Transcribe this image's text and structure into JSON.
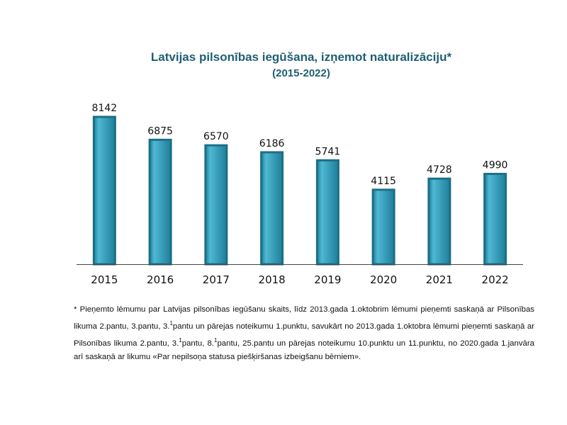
{
  "chart_data": {
    "type": "bar",
    "title": "Latvijas pilsonības iegūšana, izņemot naturalizāciju*",
    "subtitle": "(2015-2022)",
    "categories": [
      "2015",
      "2016",
      "2017",
      "2018",
      "2019",
      "2020",
      "2021",
      "2022"
    ],
    "values": [
      8142,
      6875,
      6570,
      6186,
      5741,
      4115,
      4728,
      4990
    ],
    "xlabel": "",
    "ylabel": "",
    "ylim": [
      0,
      8142
    ],
    "grid": false,
    "legend": "none",
    "bar_color": "#3a9fbb",
    "bar_edge_color": "#1d6f86",
    "axis_color": "#444444"
  },
  "footnote": {
    "p1": "* Pieņemto lēmumu par Latvijas pilsonības iegūšanu skaits, līdz 2013.gada 1.oktobrim lēmumi pieņemti saskaņā ar Pilsonības likuma 2.pantu, 3.pantu, 3.",
    "sup1": "1",
    "p2": "pantu un pārejas noteikumu 1.punktu, savukārt no 2013.gada 1.oktobra lēmumi pieņemti saskaņā ar Pilsonības likuma 2.pantu, 3.",
    "sup2": "1",
    "p3": "pantu, 8.",
    "sup3": "1",
    "p4": "pantu, 25.pantu un pārejas noteikumu 10.punktu un 11.punktu, no 2020.gada 1.janvāra arī saskaņā ar likumu «Par nepilsoņa statusa piešķiršanas izbeigšanu bērniem»."
  }
}
